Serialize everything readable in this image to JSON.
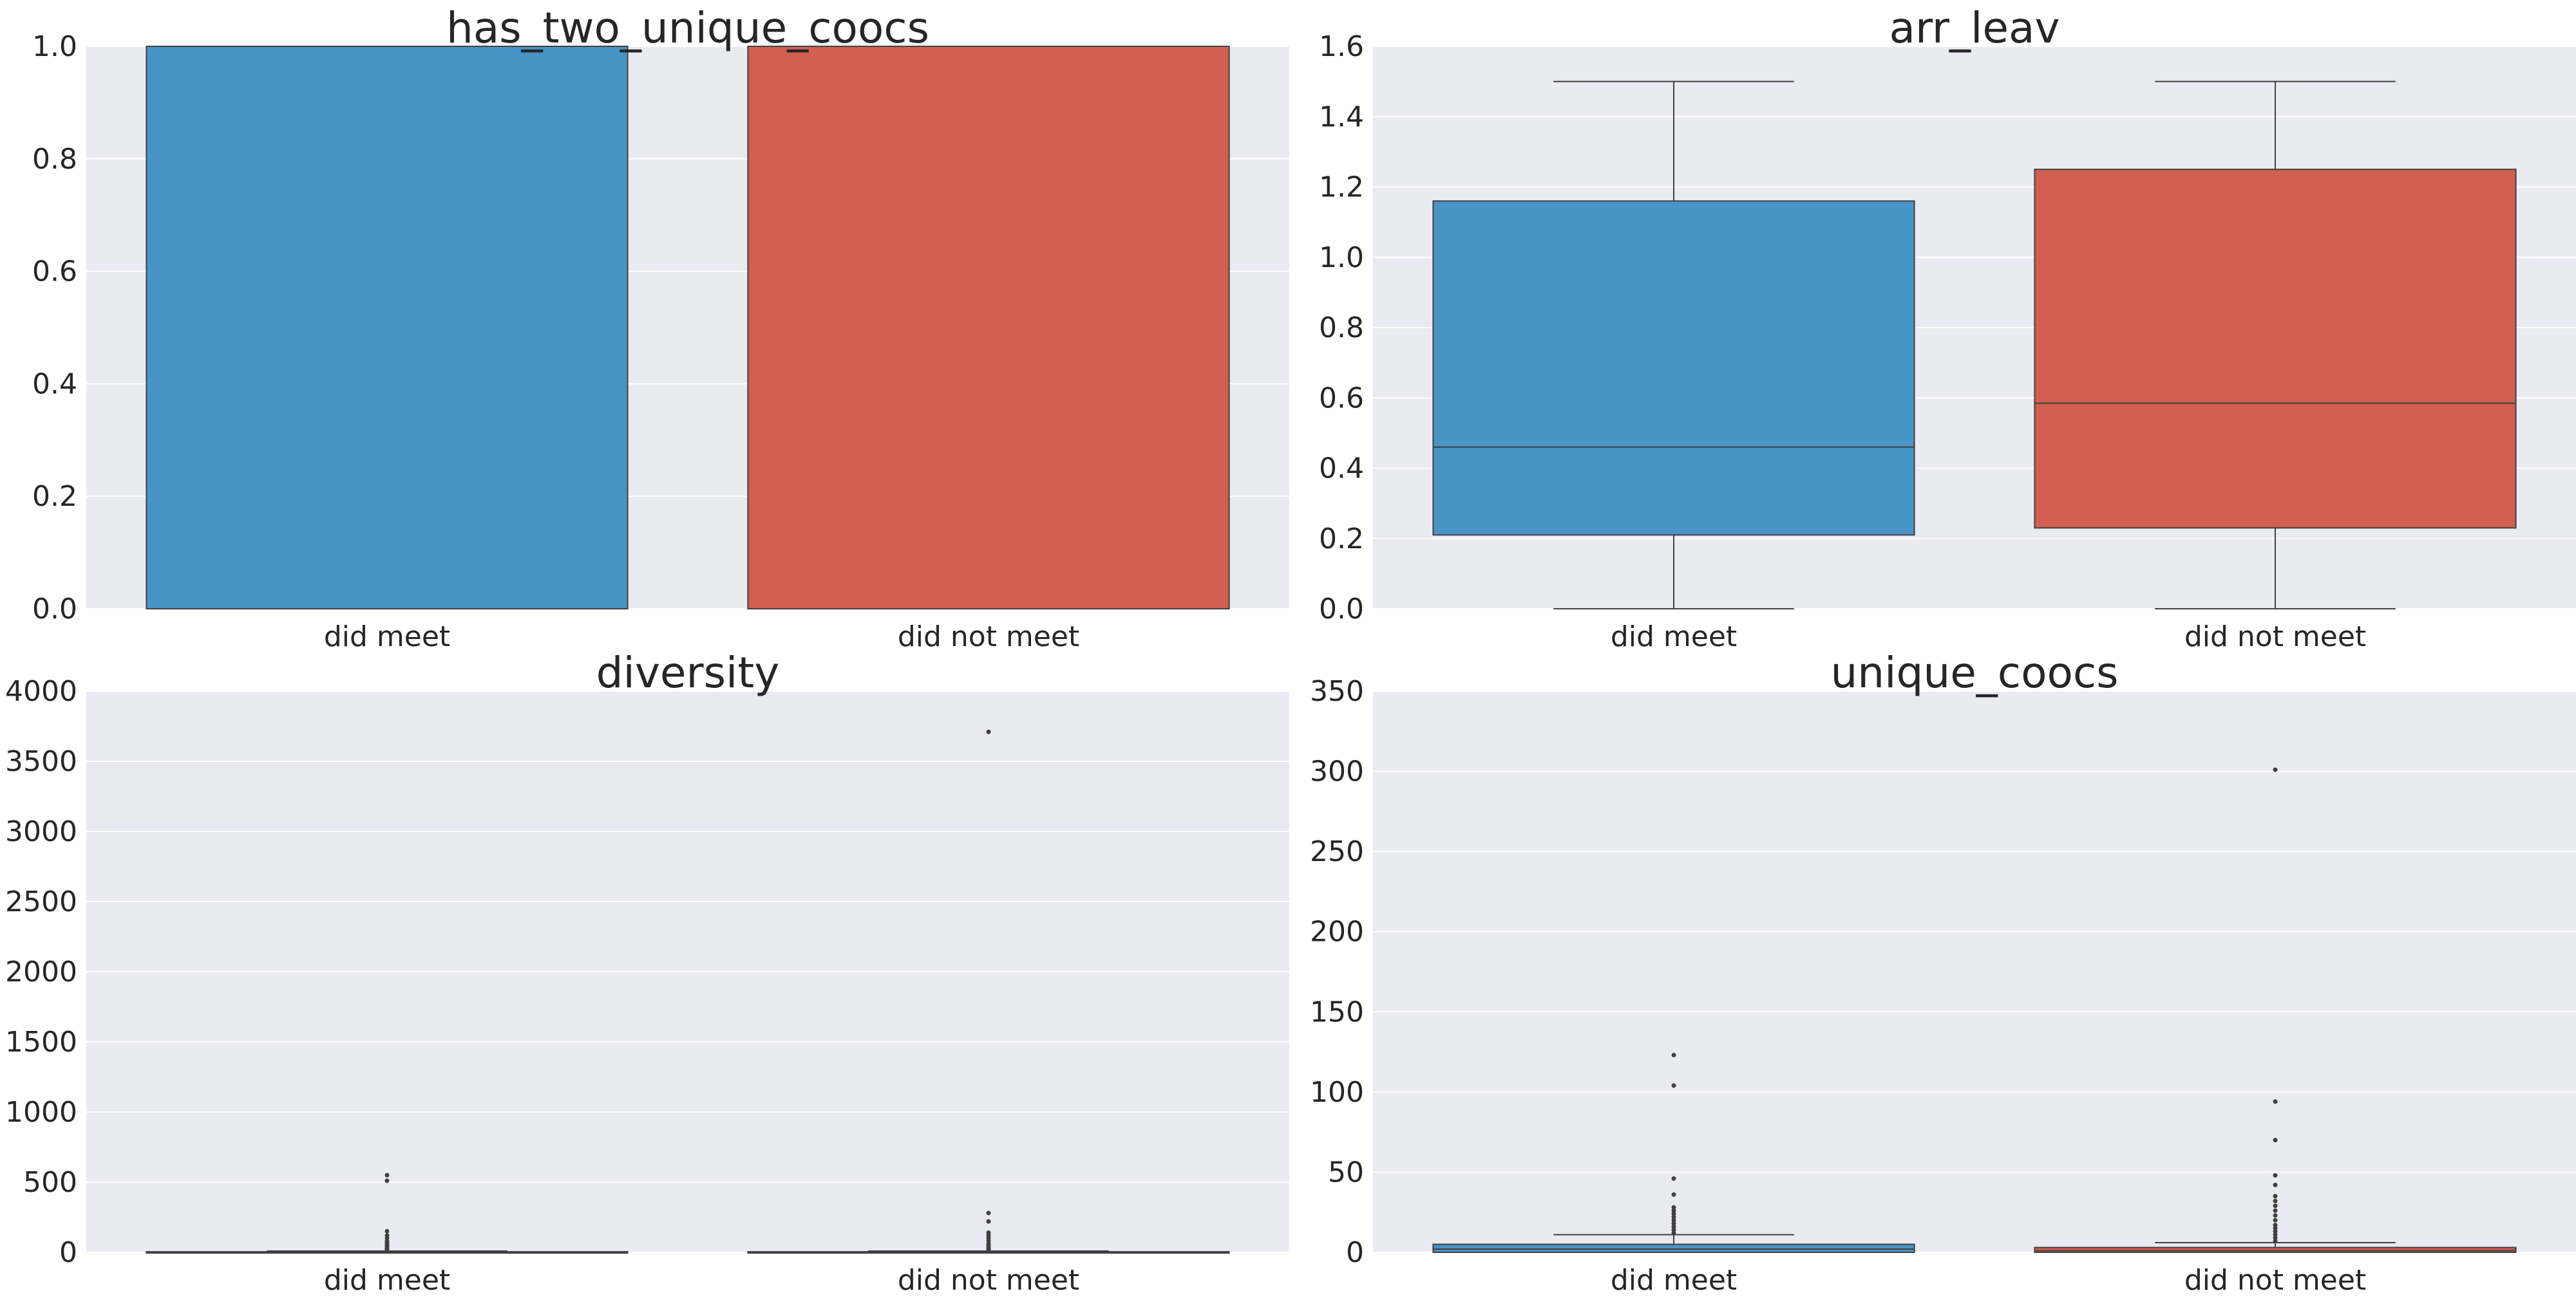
{
  "colors": {
    "did_meet": "#4894c7",
    "did_not_meet": "#d25f51",
    "axes_bg": "#eaeaf2",
    "grid": "#ffffff",
    "edge": "#404040"
  },
  "chart_data": [
    {
      "type": "bar",
      "title": "has_two_unique_coocs",
      "xlabel": "",
      "ylabel": "",
      "categories": [
        "did meet",
        "did not meet"
      ],
      "values": [
        1.0,
        1.0
      ],
      "yticks": [
        "0.0",
        "0.2",
        "0.4",
        "0.6",
        "0.8",
        "1.0"
      ],
      "ylim": [
        0,
        1.0
      ],
      "grid": true
    },
    {
      "type": "box",
      "title": "arr_leav",
      "xlabel": "",
      "ylabel": "",
      "categories": [
        "did meet",
        "did not meet"
      ],
      "boxes": [
        {
          "whislo": 0.0,
          "q1": 0.21,
          "med": 0.46,
          "q3": 1.16,
          "whishi": 1.5,
          "fliers": []
        },
        {
          "whislo": 0.0,
          "q1": 0.23,
          "med": 0.585,
          "q3": 1.25,
          "whishi": 1.5,
          "fliers": []
        }
      ],
      "yticks": [
        "0.0",
        "0.2",
        "0.4",
        "0.6",
        "0.8",
        "1.0",
        "1.2",
        "1.4",
        "1.6"
      ],
      "ylim": [
        0,
        1.6
      ],
      "grid": true
    },
    {
      "type": "box",
      "title": "diversity",
      "xlabel": "",
      "ylabel": "",
      "categories": [
        "did meet",
        "did not meet"
      ],
      "boxes": [
        {
          "whislo": 0,
          "q1": 1,
          "med": 2,
          "q3": 4,
          "whishi": 9,
          "fliers": [
            10,
            20,
            30,
            40,
            50,
            60,
            70,
            80,
            100,
            120,
            150,
            510,
            550
          ]
        },
        {
          "whislo": 0,
          "q1": 1,
          "med": 2,
          "q3": 4,
          "whishi": 9,
          "fliers": [
            10,
            20,
            30,
            40,
            50,
            60,
            80,
            100,
            120,
            140,
            220,
            280,
            3710
          ]
        }
      ],
      "yticks": [
        "0",
        "500",
        "1000",
        "1500",
        "2000",
        "2500",
        "3000",
        "3500",
        "4000"
      ],
      "ylim": [
        0,
        4000
      ],
      "grid": true
    },
    {
      "type": "box",
      "title": "unique_coocs",
      "xlabel": "",
      "ylabel": "",
      "categories": [
        "did meet",
        "did not meet"
      ],
      "boxes": [
        {
          "whislo": 0,
          "q1": 0,
          "med": 2,
          "q3": 5,
          "whishi": 11,
          "fliers": [
            12,
            14,
            16,
            18,
            20,
            22,
            24,
            26,
            28,
            36,
            46,
            104,
            123
          ]
        },
        {
          "whislo": 0,
          "q1": 0,
          "med": 1,
          "q3": 3,
          "whishi": 6,
          "fliers": [
            7,
            9,
            11,
            13,
            15,
            17,
            20,
            23,
            26,
            29,
            32,
            35,
            42,
            48,
            70,
            94,
            301
          ]
        }
      ],
      "yticks": [
        "0",
        "50",
        "100",
        "150",
        "200",
        "250",
        "300",
        "350"
      ],
      "ylim": [
        0,
        350
      ],
      "grid": true
    }
  ]
}
